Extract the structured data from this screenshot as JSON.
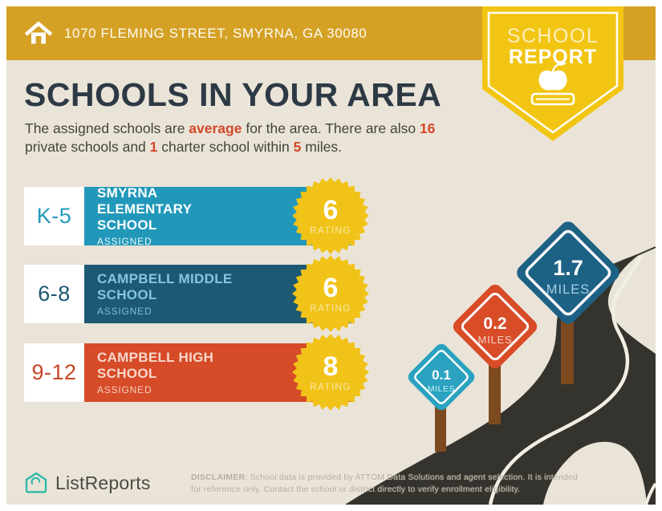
{
  "header": {
    "address": "1070 FLEMING STREET, SMYRNA, GA 30080",
    "badge_line1": "SCHOOL",
    "badge_line2": "REPORT"
  },
  "intro": {
    "title": "SCHOOLS IN YOUR AREA",
    "subtitle_parts": [
      "The assigned schools are ",
      "average",
      " for the area. There are also ",
      "16",
      " private schools and ",
      "1",
      " charter school within ",
      "5",
      " miles."
    ]
  },
  "schools": [
    {
      "grades": "K-5",
      "name": "SMYRNA ELEMENTARY SCHOOL",
      "status": "ASSIGNED",
      "rating": "6",
      "rating_label": "RATING",
      "bar_color": "#2198ba",
      "grade_color": "#2599bb",
      "text_color": "#ffffff"
    },
    {
      "grades": "6-8",
      "name": "CAMPBELL MIDDLE SCHOOL",
      "status": "ASSIGNED",
      "rating": "6",
      "rating_label": "RATING",
      "bar_color": "#1d5972",
      "grade_color": "#1d5972",
      "text_color": "#82c8df"
    },
    {
      "grades": "9-12",
      "name": "CAMPBELL HIGH SCHOOL",
      "status": "ASSIGNED",
      "rating": "8",
      "rating_label": "RATING",
      "bar_color": "#d64b28",
      "grade_color": "#c64727",
      "text_color": "#f8d8cc"
    }
  ],
  "road_signs": [
    {
      "value": "0.1",
      "label": "MILES",
      "color": "#2aa2c0"
    },
    {
      "value": "0.2",
      "label": "MILES",
      "color": "#d84c28"
    },
    {
      "value": "1.7",
      "label": "MILES",
      "color": "#1d6185"
    }
  ],
  "footer": {
    "brand": "ListReports",
    "disclaimer_label": "DISCLAIMER",
    "disclaimer_line1": ": School data is provided by ATTOM Data Solutions and agent selection. It is intended",
    "disclaimer_line2": "for reference only. Contact the school or district directly to verify enrollment eligibility."
  },
  "colors": {
    "topbar_gold": "#d5a125",
    "badge_yellow": "#f2c513",
    "rating_star_yellow": "#f1c318",
    "background_beige": "#eae4d8",
    "title_navy": "#2d3a45",
    "accent_red": "#d34829",
    "road_dark": "#35332d",
    "road_line": "#f1eee3",
    "post_brown": "#7c4a1e",
    "brand_teal": "#2db9a7"
  }
}
